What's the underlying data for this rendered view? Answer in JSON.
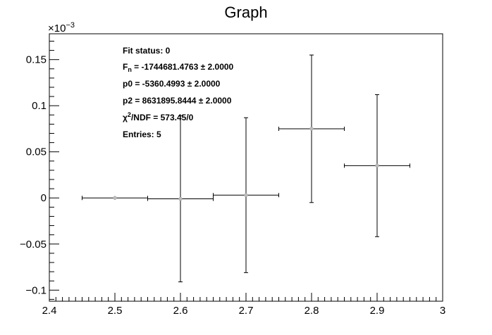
{
  "chart_data": {
    "type": "scatter",
    "title": "Graph",
    "y_exponent_label": "×10",
    "y_exponent_value": "−3",
    "xlim": [
      2.4,
      3.0
    ],
    "ylim": [
      -0.112,
      0.178
    ],
    "x_ticks": [
      {
        "value": 2.4,
        "label": "2.4"
      },
      {
        "value": 2.5,
        "label": "2.5"
      },
      {
        "value": 2.6,
        "label": "2.6"
      },
      {
        "value": 2.7,
        "label": "2.7"
      },
      {
        "value": 2.8,
        "label": "2.8"
      },
      {
        "value": 2.9,
        "label": "2.9"
      },
      {
        "value": 3.0,
        "label": "3"
      }
    ],
    "y_ticks": [
      {
        "value": -0.1,
        "label": "−0.1"
      },
      {
        "value": -0.05,
        "label": "−0.05"
      },
      {
        "value": 0,
        "label": "0"
      },
      {
        "value": 0.05,
        "label": "0.05"
      },
      {
        "value": 0.1,
        "label": "0.1"
      },
      {
        "value": 0.15,
        "label": "0.15"
      }
    ],
    "points": [
      {
        "x": 2.5,
        "y": 0.0,
        "ex": 0.05,
        "ey": 0.0
      },
      {
        "x": 2.6,
        "y": -0.001,
        "ex": 0.05,
        "ey": 0.09
      },
      {
        "x": 2.7,
        "y": 0.003,
        "ex": 0.05,
        "ey": 0.084
      },
      {
        "x": 2.8,
        "y": 0.075,
        "ex": 0.05,
        "ey": 0.08
      },
      {
        "x": 2.9,
        "y": 0.035,
        "ex": 0.05,
        "ey": 0.077
      }
    ],
    "stats_box": {
      "fit_status": "Fit status: 0",
      "fn_prefix": "F",
      "fn_sub": "n",
      "fn_value": " = -1744681.4763   ± 2.0000",
      "p0": "p0 = -5360.4993   ± 2.0000",
      "p2": "p2 = 8631895.8444   ± 2.0000",
      "chi_prefix": "χ",
      "chi_sup": "2",
      "chi_value": "/NDF = 573.45/0",
      "entries": "Entries: 5"
    }
  }
}
